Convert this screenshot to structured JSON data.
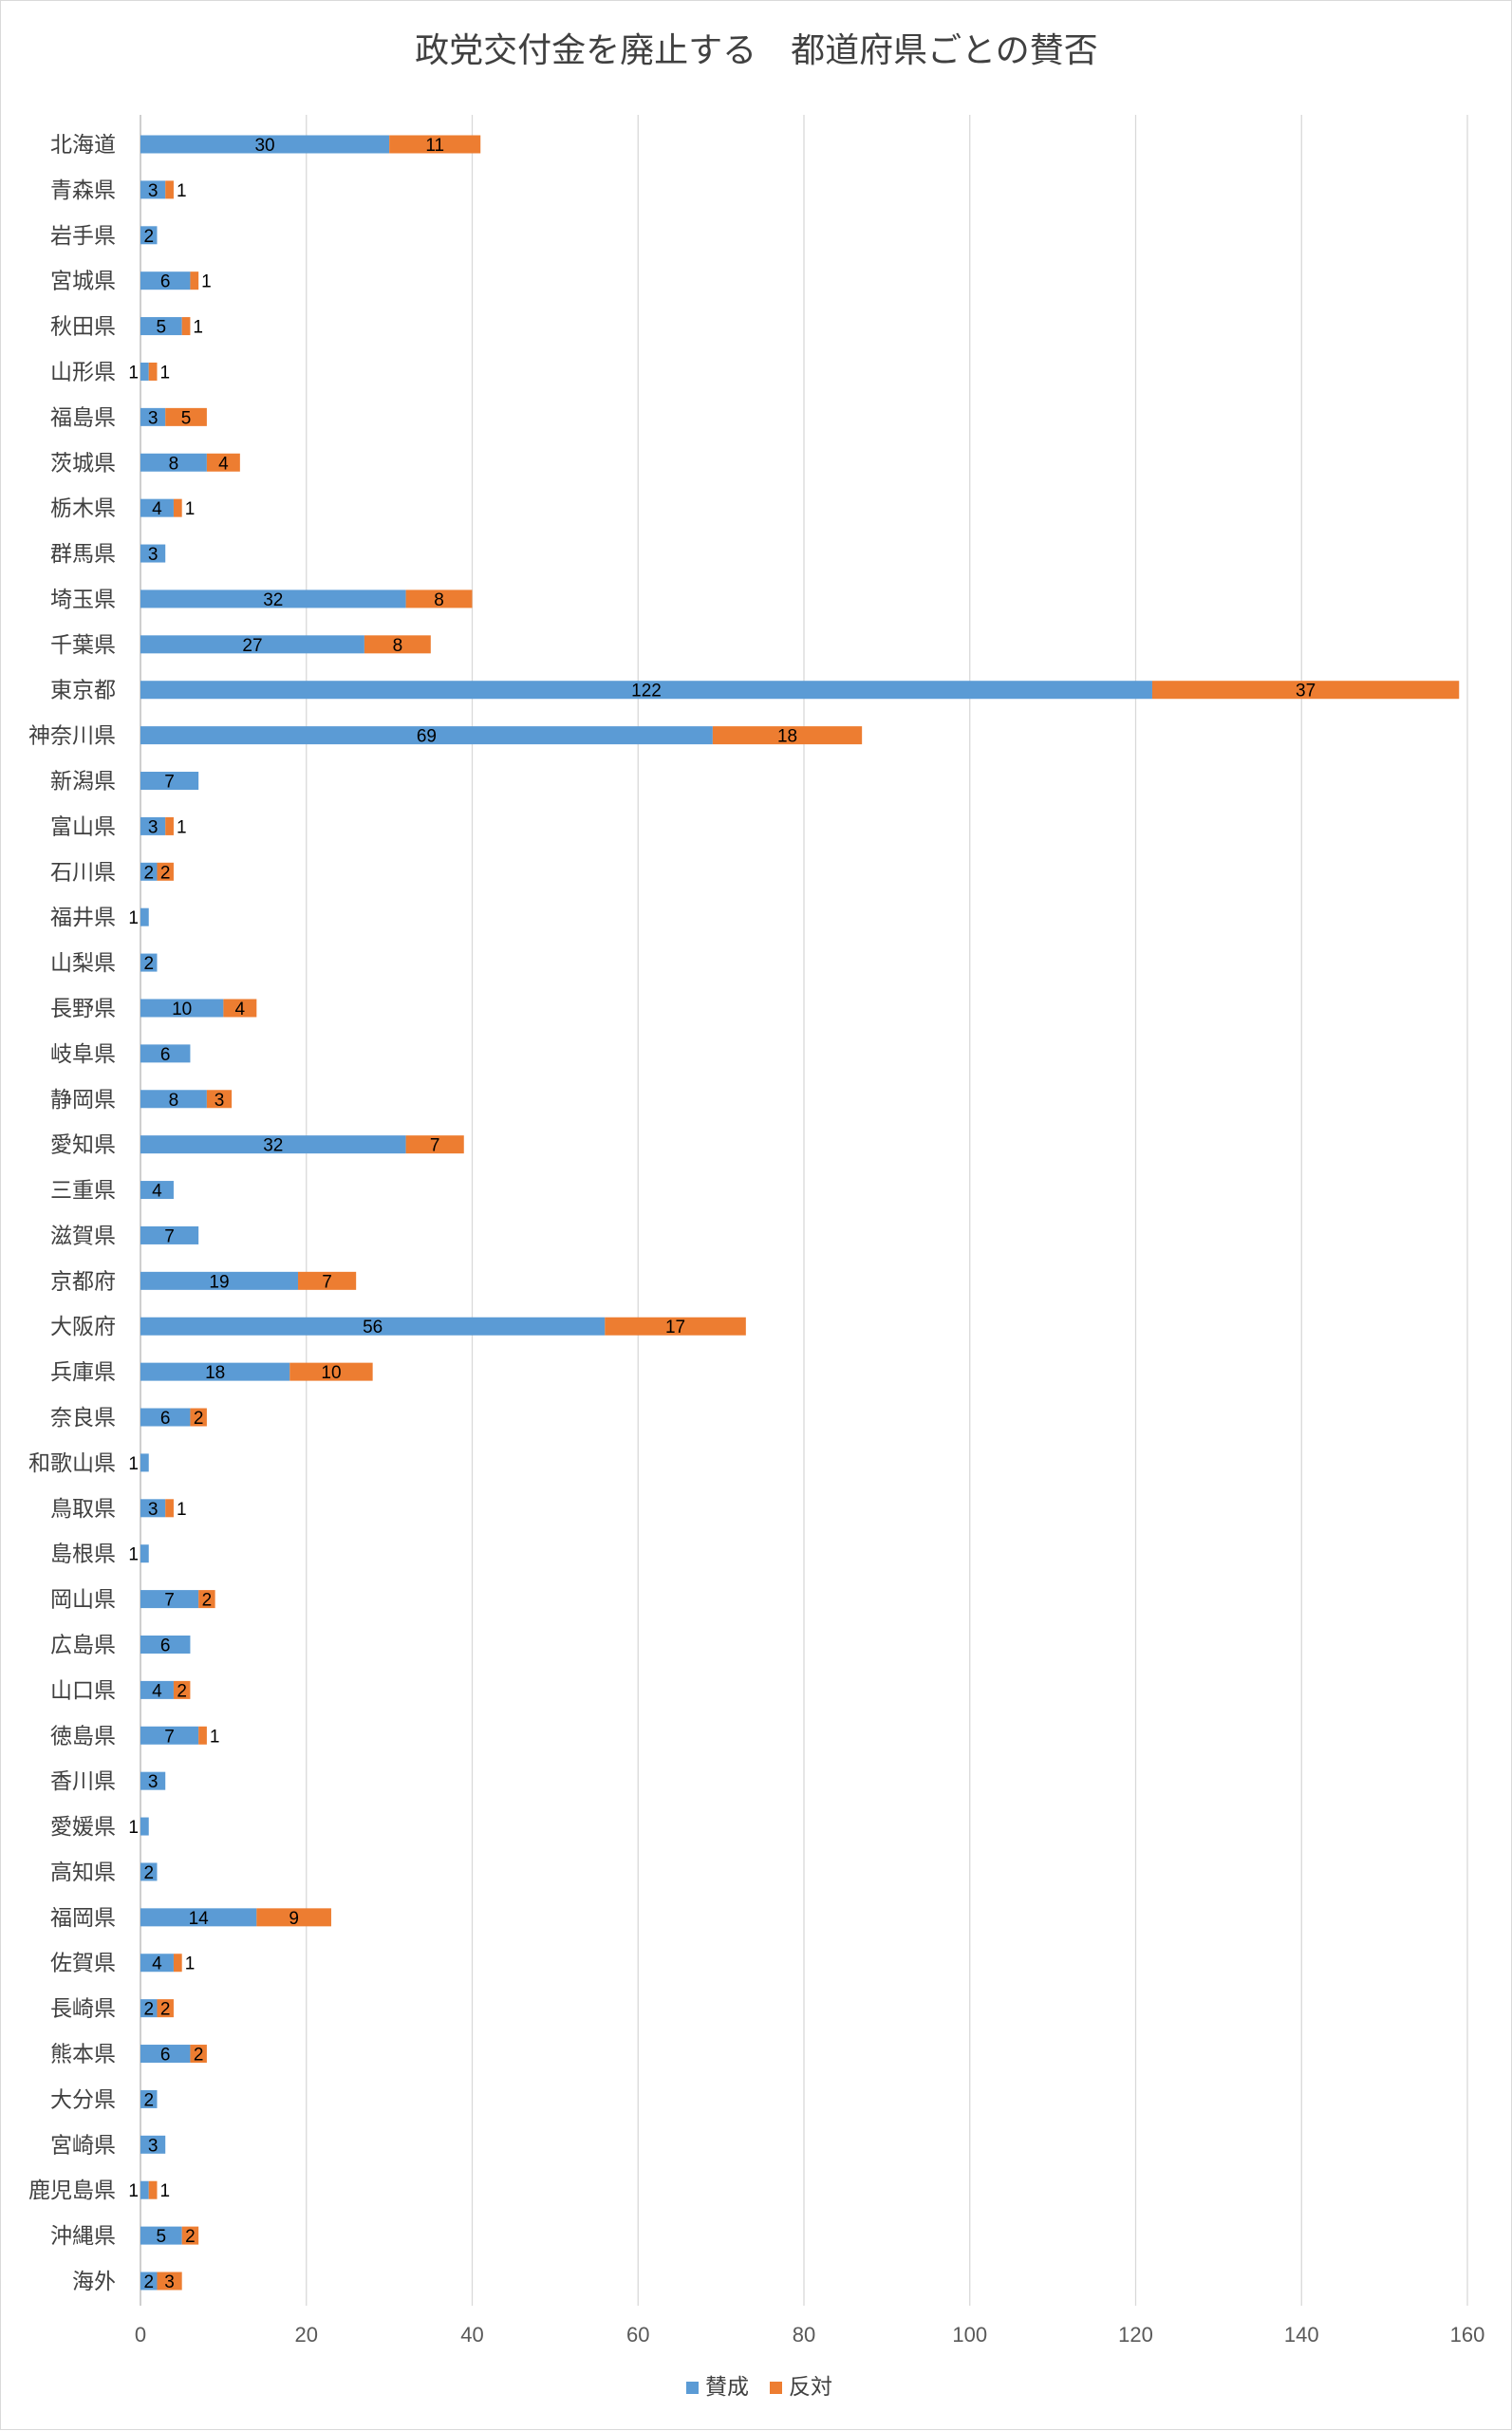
{
  "chart_data": {
    "type": "bar",
    "orientation": "horizontal",
    "stacked": true,
    "title": "政党交付金を廃止する　都道府県ごとの賛否",
    "xlim": [
      0,
      160
    ],
    "xticks": [
      0,
      20,
      40,
      60,
      80,
      100,
      120,
      140,
      160
    ],
    "grid": true,
    "legend_position": "bottom",
    "categories": [
      "北海道",
      "青森県",
      "岩手県",
      "宮城県",
      "秋田県",
      "山形県",
      "福島県",
      "茨城県",
      "栃木県",
      "群馬県",
      "埼玉県",
      "千葉県",
      "東京都",
      "神奈川県",
      "新潟県",
      "富山県",
      "石川県",
      "福井県",
      "山梨県",
      "長野県",
      "岐阜県",
      "静岡県",
      "愛知県",
      "三重県",
      "滋賀県",
      "京都府",
      "大阪府",
      "兵庫県",
      "奈良県",
      "和歌山県",
      "鳥取県",
      "島根県",
      "岡山県",
      "広島県",
      "山口県",
      "徳島県",
      "香川県",
      "愛媛県",
      "高知県",
      "福岡県",
      "佐賀県",
      "長崎県",
      "熊本県",
      "大分県",
      "宮崎県",
      "鹿児島県",
      "沖縄県",
      "海外"
    ],
    "series": [
      {
        "name": "賛成",
        "color": "#5b9bd5",
        "values": [
          30,
          3,
          2,
          6,
          5,
          1,
          3,
          8,
          4,
          3,
          32,
          27,
          122,
          69,
          7,
          3,
          2,
          1,
          2,
          10,
          6,
          8,
          32,
          4,
          7,
          19,
          56,
          18,
          6,
          1,
          3,
          1,
          7,
          6,
          4,
          7,
          3,
          1,
          2,
          14,
          4,
          2,
          6,
          2,
          3,
          1,
          5,
          2
        ]
      },
      {
        "name": "反対",
        "color": "#ed7d31",
        "values": [
          11,
          1,
          0,
          1,
          1,
          1,
          5,
          4,
          1,
          0,
          8,
          8,
          37,
          18,
          0,
          1,
          2,
          0,
          0,
          4,
          0,
          3,
          7,
          0,
          0,
          7,
          17,
          10,
          2,
          0,
          1,
          0,
          2,
          0,
          2,
          1,
          0,
          0,
          0,
          9,
          1,
          2,
          2,
          0,
          0,
          1,
          2,
          3
        ]
      }
    ]
  }
}
